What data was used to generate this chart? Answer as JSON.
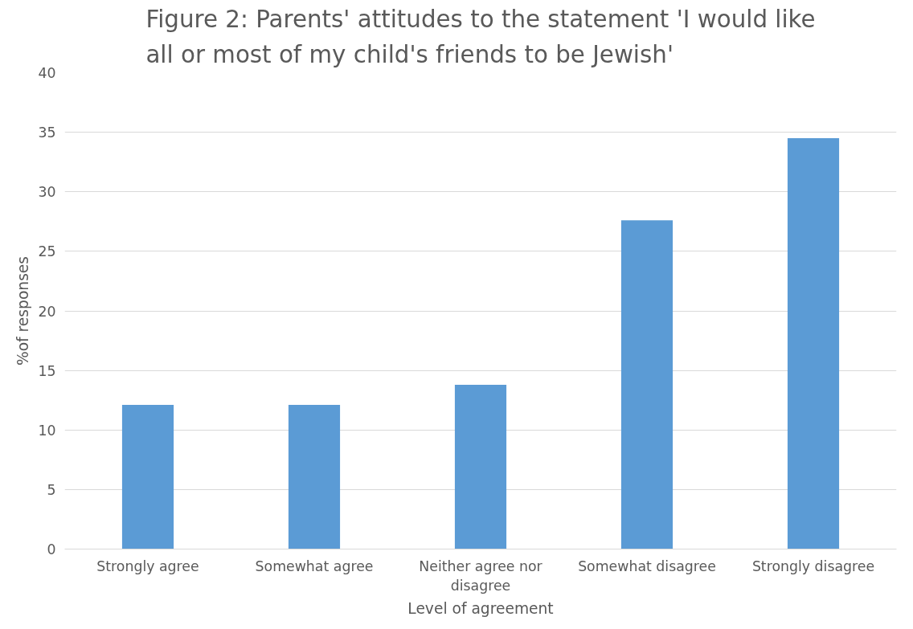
{
  "chart_data": {
    "type": "bar",
    "title": "Figure 2: Parents' attitudes to the statement 'I would like all or most of my child's friends to be Jewish'",
    "xlabel": "Level of agreement",
    "ylabel": "%of responses",
    "categories": [
      "Strongly agree",
      "Somewhat agree",
      "Neither agree nor disagree",
      "Somewhat disagree",
      "Strongly disagree"
    ],
    "values": [
      12.1,
      12.1,
      13.8,
      27.6,
      34.5
    ],
    "color": "#5b9bd5",
    "ylim": [
      0,
      40
    ],
    "yticks": [
      0,
      5,
      10,
      15,
      20,
      25,
      30,
      35,
      40
    ],
    "grid": "y"
  }
}
